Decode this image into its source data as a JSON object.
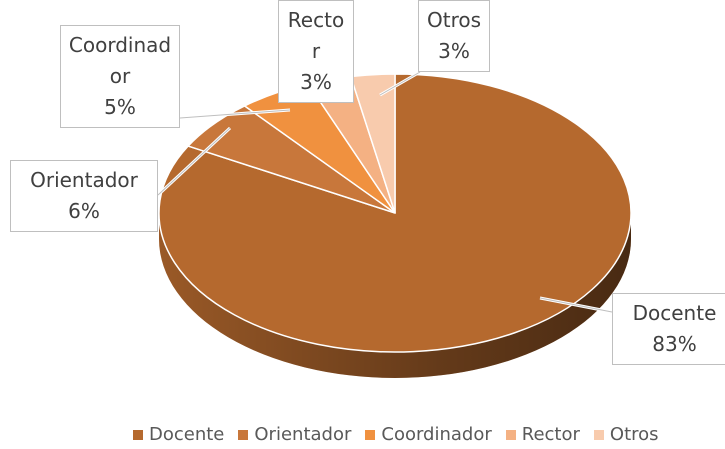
{
  "chart_data": {
    "type": "pie3d",
    "categories": [
      "Docente",
      "Orientador",
      "Coordinador",
      "Rector",
      "Otros"
    ],
    "values": [
      83,
      6,
      5,
      3,
      3
    ],
    "value_labels": [
      "83%",
      "6%",
      "5%",
      "3%",
      "3%"
    ],
    "colors": [
      "#b5692e",
      "#c8773b",
      "#f0913f",
      "#f4b183",
      "#f8cbad"
    ],
    "legend": "bottom"
  }
}
